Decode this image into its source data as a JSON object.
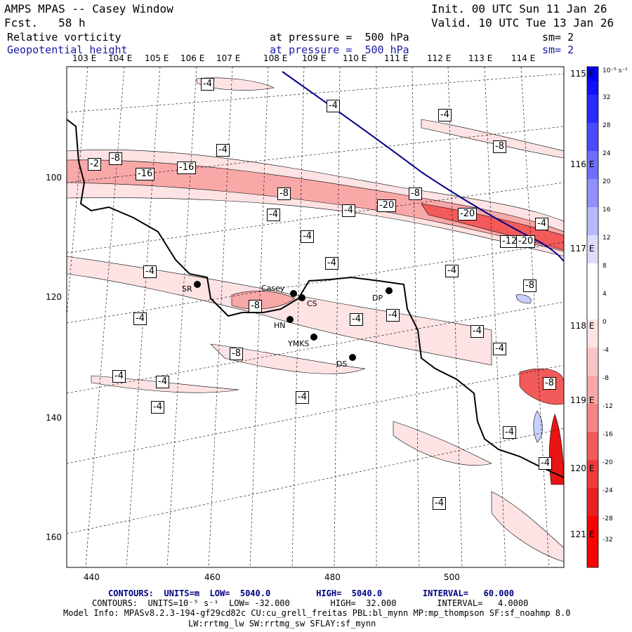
{
  "header": {
    "title": "AMPS MPAS -- Casey Window",
    "fcst": "Fcst.   58 h",
    "init": "Init. 00 UTC Sun 11 Jan 26",
    "valid": "Valid. 10 UTC Tue 13 Jan 26",
    "field1": "Relative vorticity",
    "field1_level": "at pressure =  500 hPa",
    "field1_sm": "sm= 2",
    "field2": "Geopotential height",
    "field2_level": "at pressure =  500 hPa",
    "field2_sm": "sm= 2"
  },
  "top_lon_labels": [
    "103 E",
    "104 E",
    "105 E",
    "106 E",
    "107 E",
    "108 E",
    "109 E",
    "110 E",
    "111 E",
    "112 E",
    "113 E",
    "114 E"
  ],
  "right_lon_labels": [
    "115 E",
    "116 E",
    "117 E",
    "118 E",
    "119 E",
    "120 E",
    "121 E"
  ],
  "y_ticks": [
    "100",
    "120",
    "140",
    "160"
  ],
  "x_ticks": [
    "440",
    "460",
    "480",
    "500"
  ],
  "colorbar": {
    "unit": "10⁻⁵ s⁻¹",
    "ticks": [
      "32",
      "28",
      "24",
      "20",
      "16",
      "12",
      "8",
      "4",
      "0",
      "-4",
      "-8",
      "-12",
      "-16",
      "-20",
      "-24",
      "-28",
      "-32"
    ]
  },
  "contour_labels": [
    "-4",
    "-4",
    "-4",
    "-8",
    "-4",
    "-2",
    "-8",
    "-16",
    "-16",
    "-8",
    "-8",
    "-4",
    "-4",
    "-20",
    "-20",
    "-4",
    "-4",
    "-4",
    "-12",
    "-20",
    "-4",
    "-4",
    "-8",
    "-4",
    "-4",
    "-4",
    "-4",
    "-8",
    "-8",
    "-4",
    "-4",
    "-4",
    "-4",
    "-4",
    "-8",
    "-4",
    "-4",
    "-4"
  ],
  "stations": [
    "SR",
    "Casey",
    "CS",
    "DP",
    "HN",
    "YMKS",
    "DS"
  ],
  "footer": {
    "line1": "CONTOURS:  UNITS=m  LOW=  5040.0         HIGH=  5040.0        INTERVAL=   60.000",
    "line2": "CONTOURS:  UNITS=10⁻⁵ s⁻¹  LOW= -32.000        HIGH=  32.000        INTERVAL=   4.0000",
    "line3": "Model Info: MPASv8.2.3-194-gf29cd82c CU:cu_grell_freitas PBL:bl_mynn MP:mp_thompson SF:sf_noahmp 8.0",
    "line4": "LW:rrtmg_lw SW:rrtmg_sw SFLAY:sf_mynn"
  },
  "colors": {
    "neg_strong": "#ff2020",
    "neg_light": "#fde0e0",
    "pos_strong": "#0000ff",
    "height_contour": "#00008b"
  }
}
